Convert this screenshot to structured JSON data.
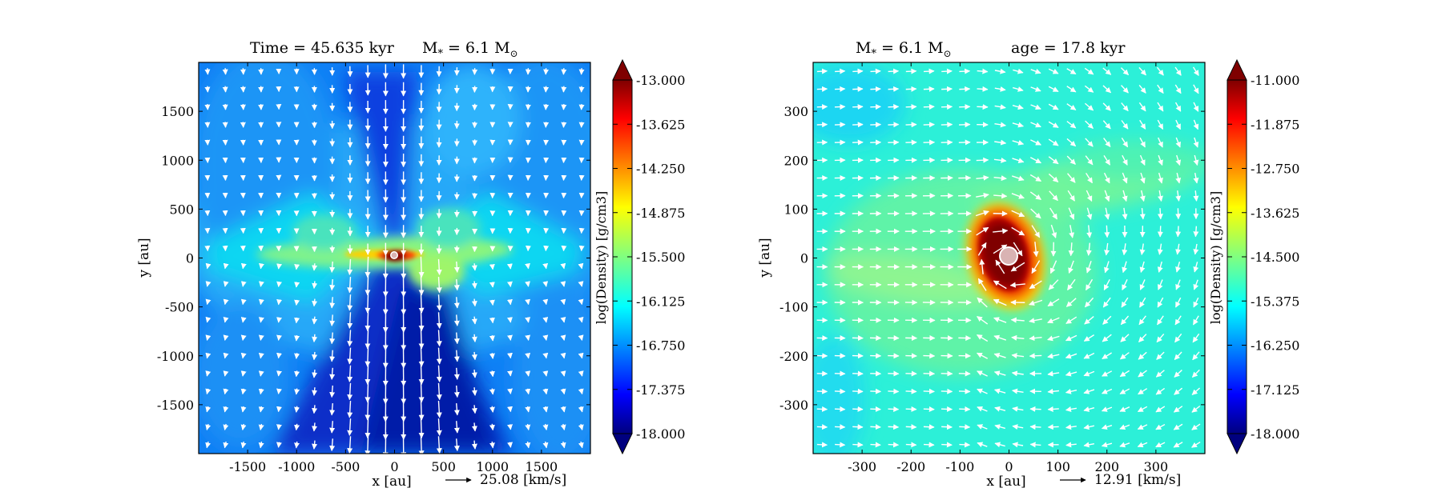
{
  "figure": {
    "panels": [
      "left",
      "right"
    ]
  },
  "chart_data": [
    {
      "type": "heatmap",
      "title": "Time = 45.635 kyr",
      "title_mass": "M",
      "title_mass_sub": "*",
      "title_mass_value": "= 6.1 M",
      "title_mass_symbol": "⊙",
      "xlabel": "x [au]",
      "ylabel": "y [au]",
      "xlim": [
        -2000,
        2000
      ],
      "ylim": [
        -2000,
        2000
      ],
      "xticks": [
        -1500,
        -1000,
        -500,
        0,
        500,
        1000,
        1500
      ],
      "yticks": [
        1500,
        1000,
        500,
        0,
        -500,
        -1000,
        -1500
      ],
      "xtick_labels": [
        "-1500",
        "-1000",
        "-500",
        "0",
        "500",
        "1000",
        "1500"
      ],
      "ytick_labels": [
        "1500",
        "1000",
        "500",
        "0",
        "-500",
        "-1000",
        "-1500"
      ],
      "colorbar": {
        "label": "log(Density) [g/cm3]",
        "min": -18.0,
        "max": -13.0,
        "ticks": [
          -13.0,
          -13.625,
          -14.25,
          -14.875,
          -15.5,
          -16.125,
          -16.75,
          -17.375,
          -18.0
        ],
        "tick_labels": [
          "-13.000",
          "-13.625",
          "-14.250",
          "-14.875",
          "-15.500",
          "-16.125",
          "-16.750",
          "-17.375",
          "-18.000"
        ],
        "colormap": "jet",
        "extend": "both"
      },
      "vector_reference": {
        "value": 25.08,
        "label": "25.08 [km/s]"
      },
      "sink": {
        "x": 0,
        "y": 0,
        "color": "#d9b3b3"
      }
    },
    {
      "type": "heatmap",
      "title_mass": "M",
      "title_mass_sub": "*",
      "title_mass_value": "= 6.1 M",
      "title_mass_symbol": "⊙",
      "title_age": "age = 17.8 kyr",
      "xlabel": "x [au]",
      "ylabel": "y [au]",
      "xlim": [
        -400,
        400
      ],
      "ylim": [
        -400,
        400
      ],
      "xticks": [
        -300,
        -200,
        -100,
        0,
        100,
        200,
        300
      ],
      "yticks": [
        300,
        200,
        100,
        0,
        -100,
        -200,
        -300
      ],
      "xtick_labels": [
        "-300",
        "-200",
        "-100",
        "0",
        "100",
        "200",
        "300"
      ],
      "ytick_labels": [
        "300",
        "200",
        "100",
        "0",
        "-100",
        "-200",
        "-300"
      ],
      "colorbar": {
        "label": "log(Density) [g/cm3]",
        "min": -18.0,
        "max": -11.0,
        "ticks": [
          -11.0,
          -11.875,
          -12.75,
          -13.625,
          -14.5,
          -15.375,
          -16.25,
          -17.125,
          -18.0
        ],
        "tick_labels": [
          "-11.000",
          "-11.875",
          "-12.750",
          "-13.625",
          "-14.500",
          "-15.375",
          "-16.250",
          "-17.125",
          "-18.000"
        ],
        "colormap": "jet",
        "extend": "both"
      },
      "vector_reference": {
        "value": 12.91,
        "label": "12.91 [km/s]"
      },
      "sink": {
        "x": 0,
        "y": 0,
        "color": "#d9b3b3"
      }
    }
  ]
}
